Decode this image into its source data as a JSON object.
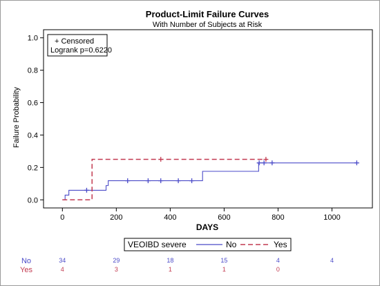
{
  "chart_data": {
    "type": "line",
    "title": "Product-Limit Failure Curves",
    "subtitle": "With Number of Subjects at Risk",
    "xlabel": "DAYS",
    "ylabel": "Failure Probability",
    "xlim": [
      -70,
      1150
    ],
    "ylim": [
      -0.05,
      1.05
    ],
    "xticks": [
      0,
      200,
      400,
      600,
      800,
      1000
    ],
    "xtick_labels": [
      "0",
      "200",
      "400",
      "600",
      "800",
      "1000"
    ],
    "yticks": [
      0.0,
      0.2,
      0.4,
      0.6,
      0.8,
      1.0
    ],
    "ytick_labels": [
      "0.0",
      "0.2",
      "0.4",
      "0.6",
      "0.8",
      "1.0"
    ],
    "grid": false,
    "inset": {
      "censored_label": "+ Censored",
      "logrank_label": "Logrank p=0.6220"
    },
    "legend": {
      "title": "VEOIBD severe",
      "position": "bottom",
      "entries": [
        "No",
        "Yes"
      ]
    },
    "series": [
      {
        "name": "No",
        "color": "#4a4ac8",
        "dash": "solid",
        "steps": [
          [
            0,
            0.0
          ],
          [
            10,
            0.029
          ],
          [
            24,
            0.059
          ],
          [
            162,
            0.088
          ],
          [
            170,
            0.118
          ],
          [
            520,
            0.176
          ],
          [
            728,
            0.228
          ],
          [
            1095,
            0.228
          ]
        ],
        "censored": [
          [
            90,
            0.059
          ],
          [
            242,
            0.118
          ],
          [
            318,
            0.118
          ],
          [
            365,
            0.118
          ],
          [
            430,
            0.118
          ],
          [
            480,
            0.118
          ],
          [
            730,
            0.228
          ],
          [
            748,
            0.228
          ],
          [
            778,
            0.228
          ],
          [
            1092,
            0.228
          ]
        ]
      },
      {
        "name": "Yes",
        "color": "#c23a50",
        "dash": "dashed",
        "steps": [
          [
            0,
            0.0
          ],
          [
            110,
            0.25
          ],
          [
            760,
            0.25
          ]
        ],
        "censored": [
          [
            365,
            0.25
          ],
          [
            755,
            0.25
          ]
        ]
      }
    ],
    "at_risk": {
      "times": [
        0,
        200,
        400,
        600,
        800,
        1000
      ],
      "rows": [
        {
          "label": "No",
          "color": "#4a4ac8",
          "values": [
            "34",
            "29",
            "18",
            "15",
            "4",
            "4"
          ]
        },
        {
          "label": "Yes",
          "color": "#c23a50",
          "values": [
            "4",
            "3",
            "1",
            "1",
            "0",
            ""
          ]
        }
      ]
    }
  }
}
